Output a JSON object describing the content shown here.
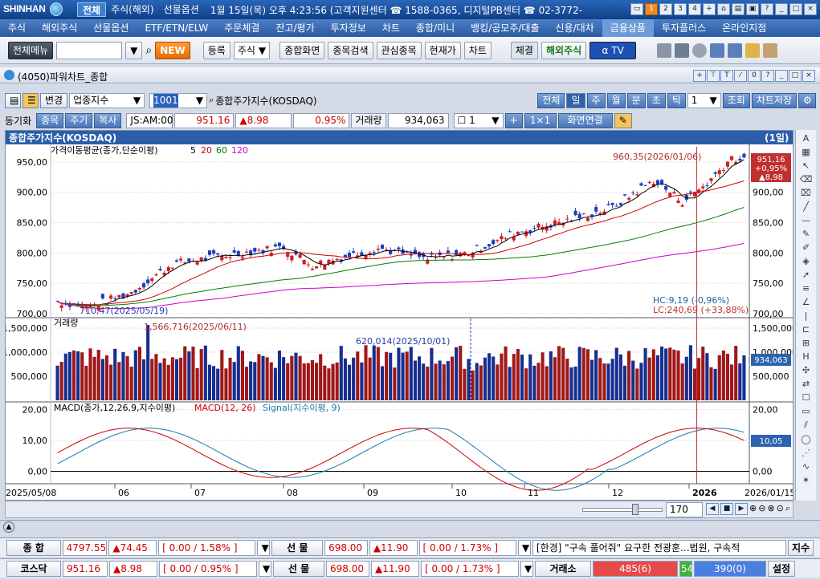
{
  "titlebar": {
    "brand": "SHINHAN",
    "tabs": [
      "전체",
      "주식(해외)",
      "선물옵션"
    ],
    "status": "1월 15일(목) 오후 4:23:56 (고객지원센터 ☎ 1588-0365, 디지털PB센터 ☎ 02-3772-",
    "screen_nums": [
      "1",
      "2",
      "3",
      "4",
      "+"
    ]
  },
  "mainmenu": [
    "주식",
    "해외주식",
    "선물옵션",
    "ETF/ETN/ELW",
    "주문체결",
    "잔고/평가",
    "투자정보",
    "차트",
    "종합/미니",
    "뱅킹/공모주/대출",
    "신용/대차",
    "금융상품",
    "투자플러스",
    "온라인지점"
  ],
  "toolbar": {
    "allmenu": "전체메뉴",
    "new": "NEW",
    "register": "등록",
    "kind": "주식",
    "buttons": [
      "종합화면",
      "종목검색",
      "관심종목",
      "현재가",
      "차트"
    ],
    "execution": "체결",
    "overseas": "해외주식"
  },
  "window": {
    "title": "(4050)파워차트_종합"
  },
  "controls": {
    "change": "변경",
    "category": "업종지수",
    "code": "1001",
    "name": "종합주가지수(KOSDAQ)",
    "periods": [
      "전체",
      "일",
      "주",
      "월",
      "분",
      "초",
      "틱"
    ],
    "period_count": "1",
    "lookup": "조회",
    "save": "차트저장",
    "sync": "동기화",
    "sync_tabs": [
      "종목",
      "주기",
      "복사"
    ],
    "time": "JS:AM:00",
    "price": "951.16",
    "change_val": "▲8.98",
    "pct": "0.95%",
    "volume_label": "거래량",
    "volume": "934,063",
    "count": "1",
    "ratio": "1×1",
    "link": "화면연결"
  },
  "chart": {
    "title": "종합주가지수(KOSDAQ)",
    "period_tag": "(1일)",
    "ma_label": "가격이동평균(종가,단순이평)",
    "ma_periods": [
      "5",
      "20",
      "60",
      "120"
    ],
    "ma_colors": [
      "#000000",
      "#d00000",
      "#008000",
      "#cc00cc"
    ],
    "price_ticks": [
      "950,00",
      "900,00",
      "850,00",
      "800,00",
      "750,00",
      "700,00"
    ],
    "high_note": "960,35(2026/01/06)",
    "low_note": "710,47(2025/05/19)",
    "last_price": "951,16",
    "last_pct": "+0,95%",
    "last_chg": "▲8,98",
    "hc": "HC:9,19 (-0,96%)",
    "lc": "LC:240,69 (+33,88%)",
    "vol_label": "거래량",
    "vol_ticks": [
      "1,500,000",
      "1,000,000",
      "500,000"
    ],
    "vol_high_note": "1,566,716(2025/06/11)",
    "vol_mark_note": "620,014(2025/10/01)",
    "vol_last": "934,063",
    "macd_label": "MACD(종가,12,26,9,지수이평)",
    "macd_line_label": "MACD(12, 26)",
    "signal_label": "Signal(지수이평, 9)",
    "macd_ticks": [
      "20,00",
      "10,00",
      "0,00"
    ],
    "macd_last": "10,05",
    "x_labels": [
      "2025/05/08",
      "06",
      "07",
      "08",
      "09",
      "10",
      "11",
      "12",
      "2026",
      "2026/01/15"
    ],
    "zoom": "170"
  },
  "chart_data": {
    "type": "candlestick",
    "series": [
      {
        "name": "종합주가지수(KOSDAQ)",
        "first": {
          "date": "2025/05/08",
          "value": 720
        },
        "low": {
          "date": "2025/05/19",
          "value": 710.47
        },
        "high": {
          "date": "2026/01/06",
          "value": 960.35
        },
        "last": {
          "date": "2026/01/15",
          "value": 951.16
        }
      }
    ],
    "ylim": [
      700,
      975
    ]
  },
  "bottom": {
    "r1_label": "종 합",
    "r1_val": "4797.55",
    "r1_chg": "▲74.45",
    "r1_rate": "[ 0.00 / 1.58% ]",
    "r1_fut": "선 물",
    "r1_fval": "698.00",
    "r1_fchg": "▲11.90",
    "r1_frate": "[ 0.00 / 1.73% ]",
    "news": "[한경] \"구속 풀어줘\" 요구한 전광훈...법원, 구속적",
    "news_btn": "지수",
    "r2_label": "코스닥",
    "r2_val": "951.16",
    "r2_chg": "▲8.98",
    "r2_rate": "[ 0.00 / 0.95% ]",
    "r2_fut": "선 물",
    "r2_fval": "698.00",
    "r2_fchg": "▲11.90",
    "r2_frate": "[ 0.00 / 1.73% ]",
    "exchange": "거래소",
    "up": "485(6)",
    "flat": "54",
    "down": "390(0)",
    "settings": "설정"
  }
}
